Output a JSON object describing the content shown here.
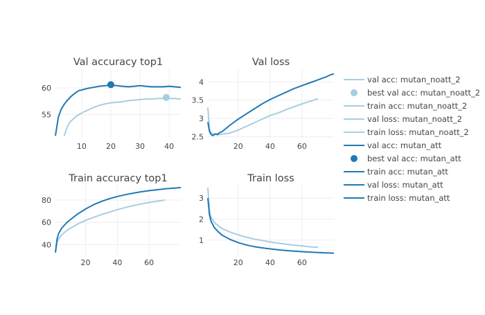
{
  "colors": {
    "noatt": "#a6cee3",
    "att": "#1f78b4",
    "grid": "#eeeeee",
    "text": "#444444"
  },
  "legend": [
    {
      "label": "val acc: mutan_noatt_2",
      "kind": "line",
      "color": "#a6cee3"
    },
    {
      "label": "best val acc: mutan_noatt_2",
      "kind": "dot",
      "color": "#a6cee3"
    },
    {
      "label": "train acc: mutan_noatt_2",
      "kind": "line",
      "color": "#a6cee3"
    },
    {
      "label": "val loss: mutan_noatt_2",
      "kind": "line",
      "color": "#a6cee3"
    },
    {
      "label": "train loss: mutan_noatt_2",
      "kind": "line",
      "color": "#a6cee3"
    },
    {
      "label": "val acc: mutan_att",
      "kind": "line",
      "color": "#1f78b4"
    },
    {
      "label": "best val acc: mutan_att",
      "kind": "dot",
      "color": "#1f78b4"
    },
    {
      "label": "train acc: mutan_att",
      "kind": "line",
      "color": "#1f78b4"
    },
    {
      "label": "val loss: mutan_att",
      "kind": "line",
      "color": "#1f78b4"
    },
    {
      "label": "train loss: mutan_att",
      "kind": "line",
      "color": "#1f78b4"
    }
  ],
  "chart_data": [
    {
      "id": "val-acc",
      "type": "line",
      "title": "Val accuracy top1",
      "xlim": [
        1,
        44
      ],
      "ylim": [
        50.5,
        63.5
      ],
      "xticks": [
        10,
        20,
        30,
        40
      ],
      "yticks": [
        55,
        60
      ],
      "series": [
        {
          "name": "val acc: mutan_noatt_2",
          "color": "#a6cee3",
          "x": [
            4,
            5,
            6,
            8,
            10,
            12,
            14,
            16,
            18,
            20,
            22,
            24,
            26,
            28,
            30,
            32,
            34,
            36,
            38,
            40,
            42,
            44
          ],
          "y": [
            51.0,
            52.6,
            53.6,
            54.6,
            55.3,
            55.8,
            56.3,
            56.7,
            57.0,
            57.2,
            57.3,
            57.4,
            57.6,
            57.7,
            57.8,
            57.9,
            57.9,
            58.0,
            58.0,
            58.0,
            58.0,
            57.9
          ]
        },
        {
          "name": "val acc: mutan_att",
          "color": "#1f78b4",
          "x": [
            1,
            2,
            3,
            4,
            5,
            6,
            7,
            8,
            9,
            10,
            12,
            14,
            16,
            18,
            20,
            22,
            24,
            26,
            28,
            30,
            32,
            34,
            36,
            38,
            40,
            42,
            44
          ],
          "y": [
            51.0,
            54.5,
            56.0,
            56.9,
            57.6,
            58.2,
            58.7,
            59.1,
            59.5,
            59.6,
            59.9,
            60.1,
            60.3,
            60.4,
            60.5,
            60.4,
            60.3,
            60.2,
            60.3,
            60.4,
            60.3,
            60.2,
            60.2,
            60.2,
            60.3,
            60.2,
            60.1
          ]
        }
      ],
      "markers": [
        {
          "name": "best val acc: mutan_noatt_2",
          "x": 39,
          "y": 58.2,
          "color": "#a6cee3"
        },
        {
          "name": "best val acc: mutan_att",
          "x": 20,
          "y": 60.6,
          "color": "#1f78b4"
        }
      ]
    },
    {
      "id": "val-loss",
      "type": "line",
      "title": "Val loss",
      "xlim": [
        1,
        80
      ],
      "ylim": [
        2.45,
        4.35
      ],
      "xticks": [
        20,
        40,
        60
      ],
      "yticks": [
        2.5,
        3,
        3.5,
        4
      ],
      "series": [
        {
          "name": "val loss: mutan_noatt_2",
          "color": "#a6cee3",
          "x": [
            1,
            2,
            3,
            5,
            8,
            10,
            15,
            20,
            25,
            30,
            35,
            40,
            45,
            50,
            55,
            60,
            65,
            70
          ],
          "y": [
            3.3,
            2.7,
            2.6,
            2.57,
            2.56,
            2.57,
            2.6,
            2.68,
            2.78,
            2.88,
            2.98,
            3.08,
            3.15,
            3.24,
            3.32,
            3.4,
            3.47,
            3.54
          ]
        },
        {
          "name": "val loss: mutan_att",
          "color": "#1f78b4",
          "x": [
            1,
            2,
            3,
            4,
            5,
            6,
            7,
            8,
            10,
            15,
            20,
            25,
            30,
            35,
            40,
            45,
            50,
            55,
            60,
            65,
            70,
            75,
            78,
            80
          ],
          "y": [
            2.9,
            2.65,
            2.56,
            2.53,
            2.55,
            2.58,
            2.55,
            2.6,
            2.64,
            2.82,
            2.98,
            3.12,
            3.26,
            3.4,
            3.52,
            3.62,
            3.72,
            3.82,
            3.9,
            3.98,
            4.06,
            4.14,
            4.2,
            4.22
          ]
        }
      ]
    },
    {
      "id": "train-acc",
      "type": "line",
      "title": "Train accuracy top1",
      "xlim": [
        1,
        80
      ],
      "ylim": [
        31,
        93
      ],
      "xticks": [
        20,
        40,
        60
      ],
      "yticks": [
        40,
        60,
        80
      ],
      "series": [
        {
          "name": "train acc: mutan_noatt_2",
          "color": "#a6cee3",
          "x": [
            1,
            2,
            3,
            5,
            8,
            10,
            15,
            20,
            25,
            30,
            35,
            40,
            45,
            50,
            55,
            60,
            65,
            70
          ],
          "y": [
            33,
            42,
            45,
            49,
            52.5,
            54.5,
            58.5,
            61.8,
            64.5,
            67,
            69.2,
            71.4,
            73.3,
            75,
            76.5,
            77.8,
            79,
            80
          ]
        },
        {
          "name": "train acc: mutan_att",
          "color": "#1f78b4",
          "x": [
            1,
            2,
            3,
            5,
            8,
            10,
            15,
            20,
            25,
            30,
            35,
            40,
            45,
            50,
            55,
            60,
            65,
            70,
            75,
            80
          ],
          "y": [
            33,
            45,
            50,
            55,
            59.5,
            62,
            67.5,
            72,
            75.8,
            78.8,
            81.2,
            83.2,
            84.8,
            86.2,
            87.4,
            88.4,
            89.2,
            90,
            90.6,
            91.2
          ]
        }
      ]
    },
    {
      "id": "train-loss",
      "type": "line",
      "title": "Train loss",
      "xlim": [
        1,
        80
      ],
      "ylim": [
        0.3,
        3.6
      ],
      "xticks": [
        20,
        40,
        60
      ],
      "yticks": [
        1,
        2,
        3
      ],
      "series": [
        {
          "name": "train loss: mutan_noatt_2",
          "color": "#a6cee3",
          "x": [
            1,
            2,
            3,
            5,
            8,
            10,
            15,
            20,
            25,
            30,
            35,
            40,
            45,
            50,
            55,
            60,
            65,
            70
          ],
          "y": [
            3.5,
            2.4,
            2.1,
            1.85,
            1.65,
            1.55,
            1.38,
            1.25,
            1.14,
            1.05,
            0.98,
            0.91,
            0.85,
            0.8,
            0.76,
            0.72,
            0.68,
            0.65
          ]
        },
        {
          "name": "train loss: mutan_att",
          "color": "#1f78b4",
          "x": [
            1,
            2,
            3,
            5,
            8,
            10,
            15,
            20,
            25,
            30,
            35,
            40,
            45,
            50,
            55,
            60,
            65,
            70,
            75,
            80
          ],
          "y": [
            3.0,
            2.2,
            1.9,
            1.6,
            1.36,
            1.23,
            1.03,
            0.88,
            0.77,
            0.69,
            0.63,
            0.58,
            0.54,
            0.5,
            0.47,
            0.45,
            0.43,
            0.41,
            0.39,
            0.38
          ]
        }
      ]
    }
  ]
}
